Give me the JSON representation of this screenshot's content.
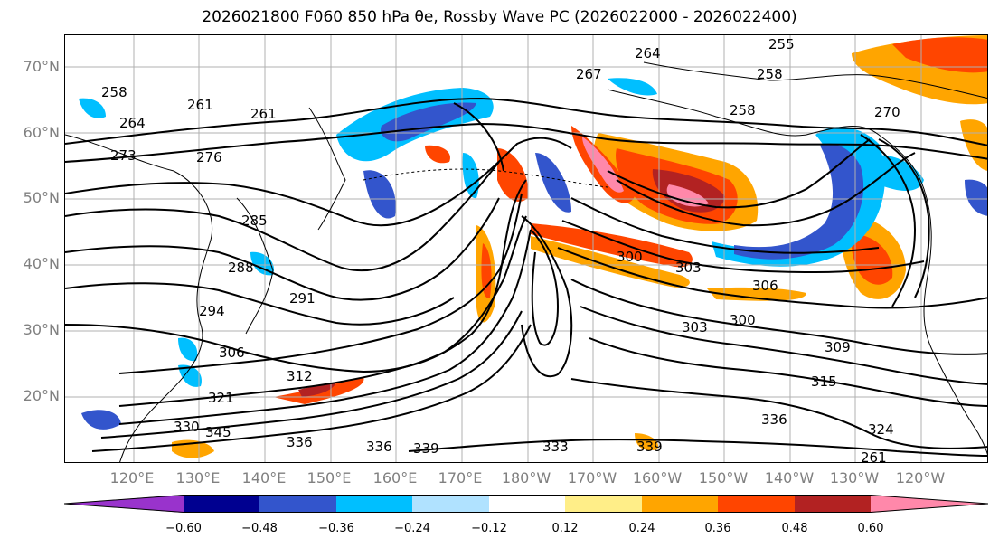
{
  "title": "2026021800 F060 850 hPa θe, Rossby Wave PC (2026022000 - 2026022400)",
  "latitude_labels": [
    "70°N",
    "60°N",
    "50°N",
    "40°N",
    "30°N",
    "20°N"
  ],
  "longitude_labels": [
    "120°E",
    "130°E",
    "140°E",
    "150°E",
    "160°E",
    "170°E",
    "180°W",
    "170°W",
    "160°W",
    "150°W",
    "140°W",
    "130°W",
    "120°W"
  ],
  "contour_labels": [
    "255",
    "258",
    "258",
    "258",
    "261",
    "261",
    "264",
    "264",
    "267",
    "270",
    "273",
    "276",
    "285",
    "288",
    "291",
    "294",
    "300",
    "300",
    "303",
    "303",
    "306",
    "306",
    "309",
    "312",
    "315",
    "321",
    "324",
    "330",
    "333",
    "336",
    "336",
    "336",
    "339",
    "339",
    "345",
    "261"
  ],
  "colorbar": {
    "colors": [
      "#9933cc",
      "#000090",
      "#3355cc",
      "#00bfff",
      "#b0e2ff",
      "#ffffff",
      "#ffee88",
      "#ffa500",
      "#ff4500",
      "#b22222",
      "#ff88aa"
    ],
    "ticks": [
      "−0.60",
      "−0.48",
      "−0.36",
      "−0.24",
      "−0.12",
      "0.12",
      "0.24",
      "0.36",
      "0.48",
      "0.60"
    ]
  },
  "map_colors": {
    "neg_strong": "#3355cc",
    "neg": "#00bfff",
    "neg_light": "#b0e2ff",
    "pos_light": "#ffee88",
    "pos": "#ffa500",
    "pos_strong": "#ff4500",
    "pos_dark": "#b22222",
    "pos_max": "#ff88aa"
  }
}
